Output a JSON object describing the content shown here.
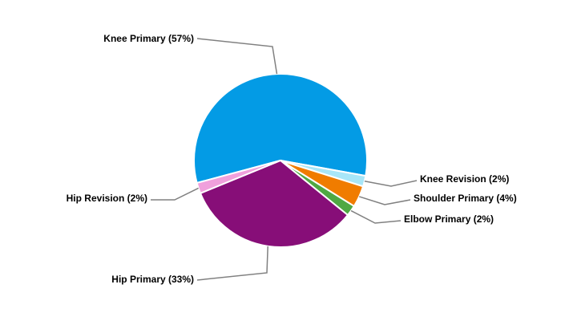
{
  "chart_data": {
    "type": "pie",
    "categories": [
      "Knee Primary (57%)",
      "Knee Revision (2%)",
      "Shoulder Primary (4%)",
      "Elbow Primary (2%)",
      "Hip Primary (33%)",
      "Hip Revision (2%)"
    ],
    "values": [
      57,
      2,
      4,
      2,
      33,
      2
    ],
    "colors": [
      "#039be5",
      "#a8e6f8",
      "#f07c00",
      "#4fa843",
      "#870e78",
      "#f0a0dc"
    ]
  }
}
